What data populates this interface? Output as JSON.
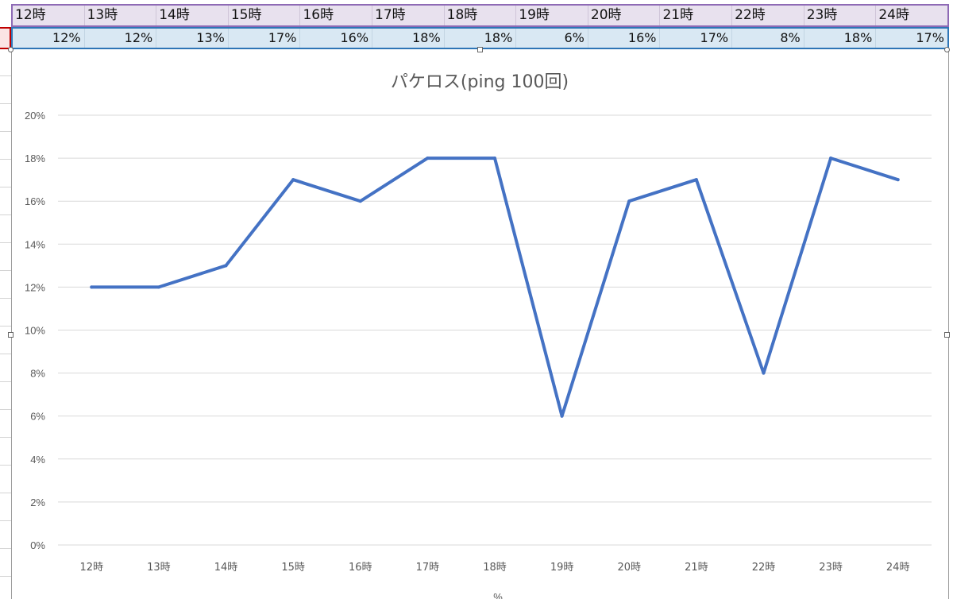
{
  "sheet": {
    "hour_labels": [
      "12時",
      "13時",
      "14時",
      "15時",
      "16時",
      "17時",
      "18時",
      "19時",
      "20時",
      "21時",
      "22時",
      "23時",
      "24時"
    ],
    "value_labels": [
      "12%",
      "12%",
      "13%",
      "17%",
      "16%",
      "18%",
      "18%",
      "6%",
      "16%",
      "17%",
      "8%",
      "18%",
      "17%"
    ]
  },
  "chart_data": {
    "type": "line",
    "title": "パケロス(ping 100回)",
    "categories": [
      "12時",
      "13時",
      "14時",
      "15時",
      "16時",
      "17時",
      "18時",
      "19時",
      "20時",
      "21時",
      "22時",
      "23時",
      "24時"
    ],
    "series": [
      {
        "values": [
          12,
          12,
          13,
          17,
          16,
          18,
          18,
          6,
          16,
          17,
          8,
          18,
          17
        ],
        "color": "#4472c4"
      }
    ],
    "y_ticks": [
      "0%",
      "2%",
      "4%",
      "6%",
      "8%",
      "10%",
      "12%",
      "14%",
      "16%",
      "18%",
      "20%"
    ],
    "ylim": [
      0,
      20
    ],
    "grid": true,
    "xlabel": "%",
    "legend": "none"
  }
}
